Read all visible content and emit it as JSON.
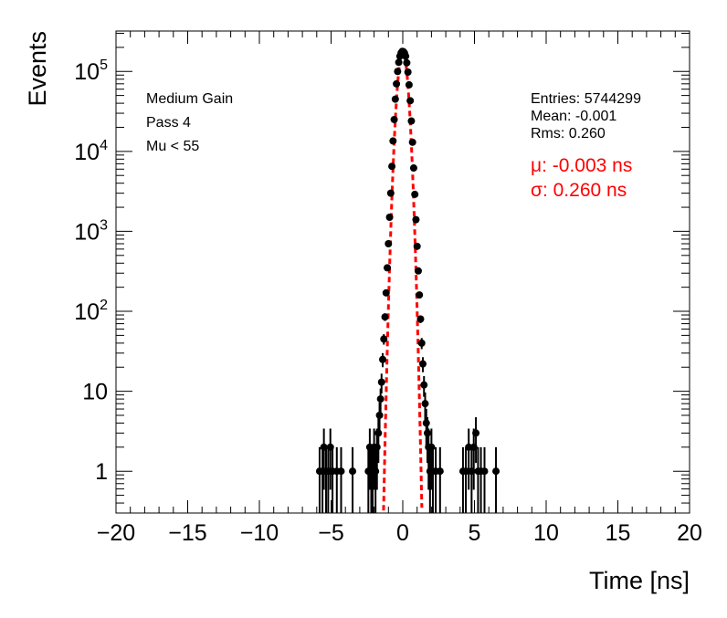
{
  "chart_data": {
    "type": "scatter",
    "xlabel": "Time [ns]",
    "ylabel": "Events",
    "xlim": [
      -20,
      20
    ],
    "ylim": [
      0.3,
      320000
    ],
    "yscale": "log",
    "x_ticks": [
      -20,
      -15,
      -10,
      -5,
      0,
      5,
      10,
      15,
      20
    ],
    "x_tick_labels": [
      "−20",
      "−15",
      "−10",
      "−5",
      "0",
      "5",
      "10",
      "15",
      "20"
    ],
    "y_ticks": [
      1,
      10,
      100,
      1000,
      10000,
      100000
    ],
    "y_tick_labels": [
      {
        "base": "1",
        "exp": ""
      },
      {
        "base": "10",
        "exp": ""
      },
      {
        "base": "10",
        "exp": "2"
      },
      {
        "base": "10",
        "exp": "3"
      },
      {
        "base": "10",
        "exp": "4"
      },
      {
        "base": "10",
        "exp": "5"
      }
    ],
    "grid": false,
    "annotations_left": [
      "Medium Gain",
      "Pass 4",
      "Mu < 55"
    ],
    "stats": [
      "Entries: 5744299",
      "Mean: -0.001",
      "Rms: 0.260"
    ],
    "fit_labels": [
      "μ: -0.003 ns",
      "σ: 0.260 ns"
    ],
    "fit": {
      "mu": -0.003,
      "sigma": 0.26,
      "amplitude": 178000,
      "color": "#ff0000"
    },
    "series": [
      {
        "marker_color": "#000000",
        "points": [
          {
            "x": -5.8,
            "y": 1
          },
          {
            "x": -5.6,
            "y": 1
          },
          {
            "x": -5.5,
            "y": 2
          },
          {
            "x": -5.35,
            "y": 1
          },
          {
            "x": -5.2,
            "y": 1
          },
          {
            "x": -5.05,
            "y": 2
          },
          {
            "x": -4.9,
            "y": 1
          },
          {
            "x": -4.6,
            "y": 1
          },
          {
            "x": -4.3,
            "y": 1
          },
          {
            "x": -3.5,
            "y": 1
          },
          {
            "x": -2.4,
            "y": 1
          },
          {
            "x": -2.3,
            "y": 2
          },
          {
            "x": -2.2,
            "y": 1
          },
          {
            "x": -2.1,
            "y": 1
          },
          {
            "x": -2.0,
            "y": 2
          },
          {
            "x": -1.9,
            "y": 1
          },
          {
            "x": -1.8,
            "y": 2
          },
          {
            "x": -1.7,
            "y": 3
          },
          {
            "x": -1.62,
            "y": 5
          },
          {
            "x": -1.55,
            "y": 8
          },
          {
            "x": -1.48,
            "y": 13
          },
          {
            "x": -1.4,
            "y": 25
          },
          {
            "x": -1.32,
            "y": 45
          },
          {
            "x": -1.24,
            "y": 85
          },
          {
            "x": -1.16,
            "y": 170
          },
          {
            "x": -1.08,
            "y": 350
          },
          {
            "x": -1.0,
            "y": 700
          },
          {
            "x": -0.92,
            "y": 1500
          },
          {
            "x": -0.84,
            "y": 3000
          },
          {
            "x": -0.76,
            "y": 6500
          },
          {
            "x": -0.68,
            "y": 13500
          },
          {
            "x": -0.6,
            "y": 25000
          },
          {
            "x": -0.52,
            "y": 45000
          },
          {
            "x": -0.44,
            "y": 70000
          },
          {
            "x": -0.36,
            "y": 100000
          },
          {
            "x": -0.28,
            "y": 130000
          },
          {
            "x": -0.2,
            "y": 155000
          },
          {
            "x": -0.12,
            "y": 170000
          },
          {
            "x": -0.04,
            "y": 178000
          },
          {
            "x": 0.04,
            "y": 177000
          },
          {
            "x": 0.12,
            "y": 170000
          },
          {
            "x": 0.2,
            "y": 155000
          },
          {
            "x": 0.28,
            "y": 128000
          },
          {
            "x": 0.36,
            "y": 98000
          },
          {
            "x": 0.44,
            "y": 68000
          },
          {
            "x": 0.52,
            "y": 43000
          },
          {
            "x": 0.6,
            "y": 24000
          },
          {
            "x": 0.68,
            "y": 13000
          },
          {
            "x": 0.76,
            "y": 6200
          },
          {
            "x": 0.84,
            "y": 2900
          },
          {
            "x": 0.92,
            "y": 1400
          },
          {
            "x": 1.0,
            "y": 650
          },
          {
            "x": 1.08,
            "y": 320
          },
          {
            "x": 1.16,
            "y": 160
          },
          {
            "x": 1.24,
            "y": 80
          },
          {
            "x": 1.32,
            "y": 40
          },
          {
            "x": 1.4,
            "y": 22
          },
          {
            "x": 1.48,
            "y": 12
          },
          {
            "x": 1.56,
            "y": 7
          },
          {
            "x": 1.64,
            "y": 4
          },
          {
            "x": 1.72,
            "y": 3
          },
          {
            "x": 1.8,
            "y": 2
          },
          {
            "x": 1.9,
            "y": 1
          },
          {
            "x": 2.0,
            "y": 2
          },
          {
            "x": 2.1,
            "y": 1
          },
          {
            "x": 2.3,
            "y": 1
          },
          {
            "x": 2.6,
            "y": 1
          },
          {
            "x": 4.2,
            "y": 1
          },
          {
            "x": 4.4,
            "y": 1
          },
          {
            "x": 4.6,
            "y": 2
          },
          {
            "x": 4.8,
            "y": 1
          },
          {
            "x": 4.95,
            "y": 2
          },
          {
            "x": 5.1,
            "y": 3
          },
          {
            "x": 5.25,
            "y": 1
          },
          {
            "x": 5.45,
            "y": 1
          },
          {
            "x": 5.7,
            "y": 1
          },
          {
            "x": 6.5,
            "y": 1
          }
        ]
      }
    ]
  }
}
